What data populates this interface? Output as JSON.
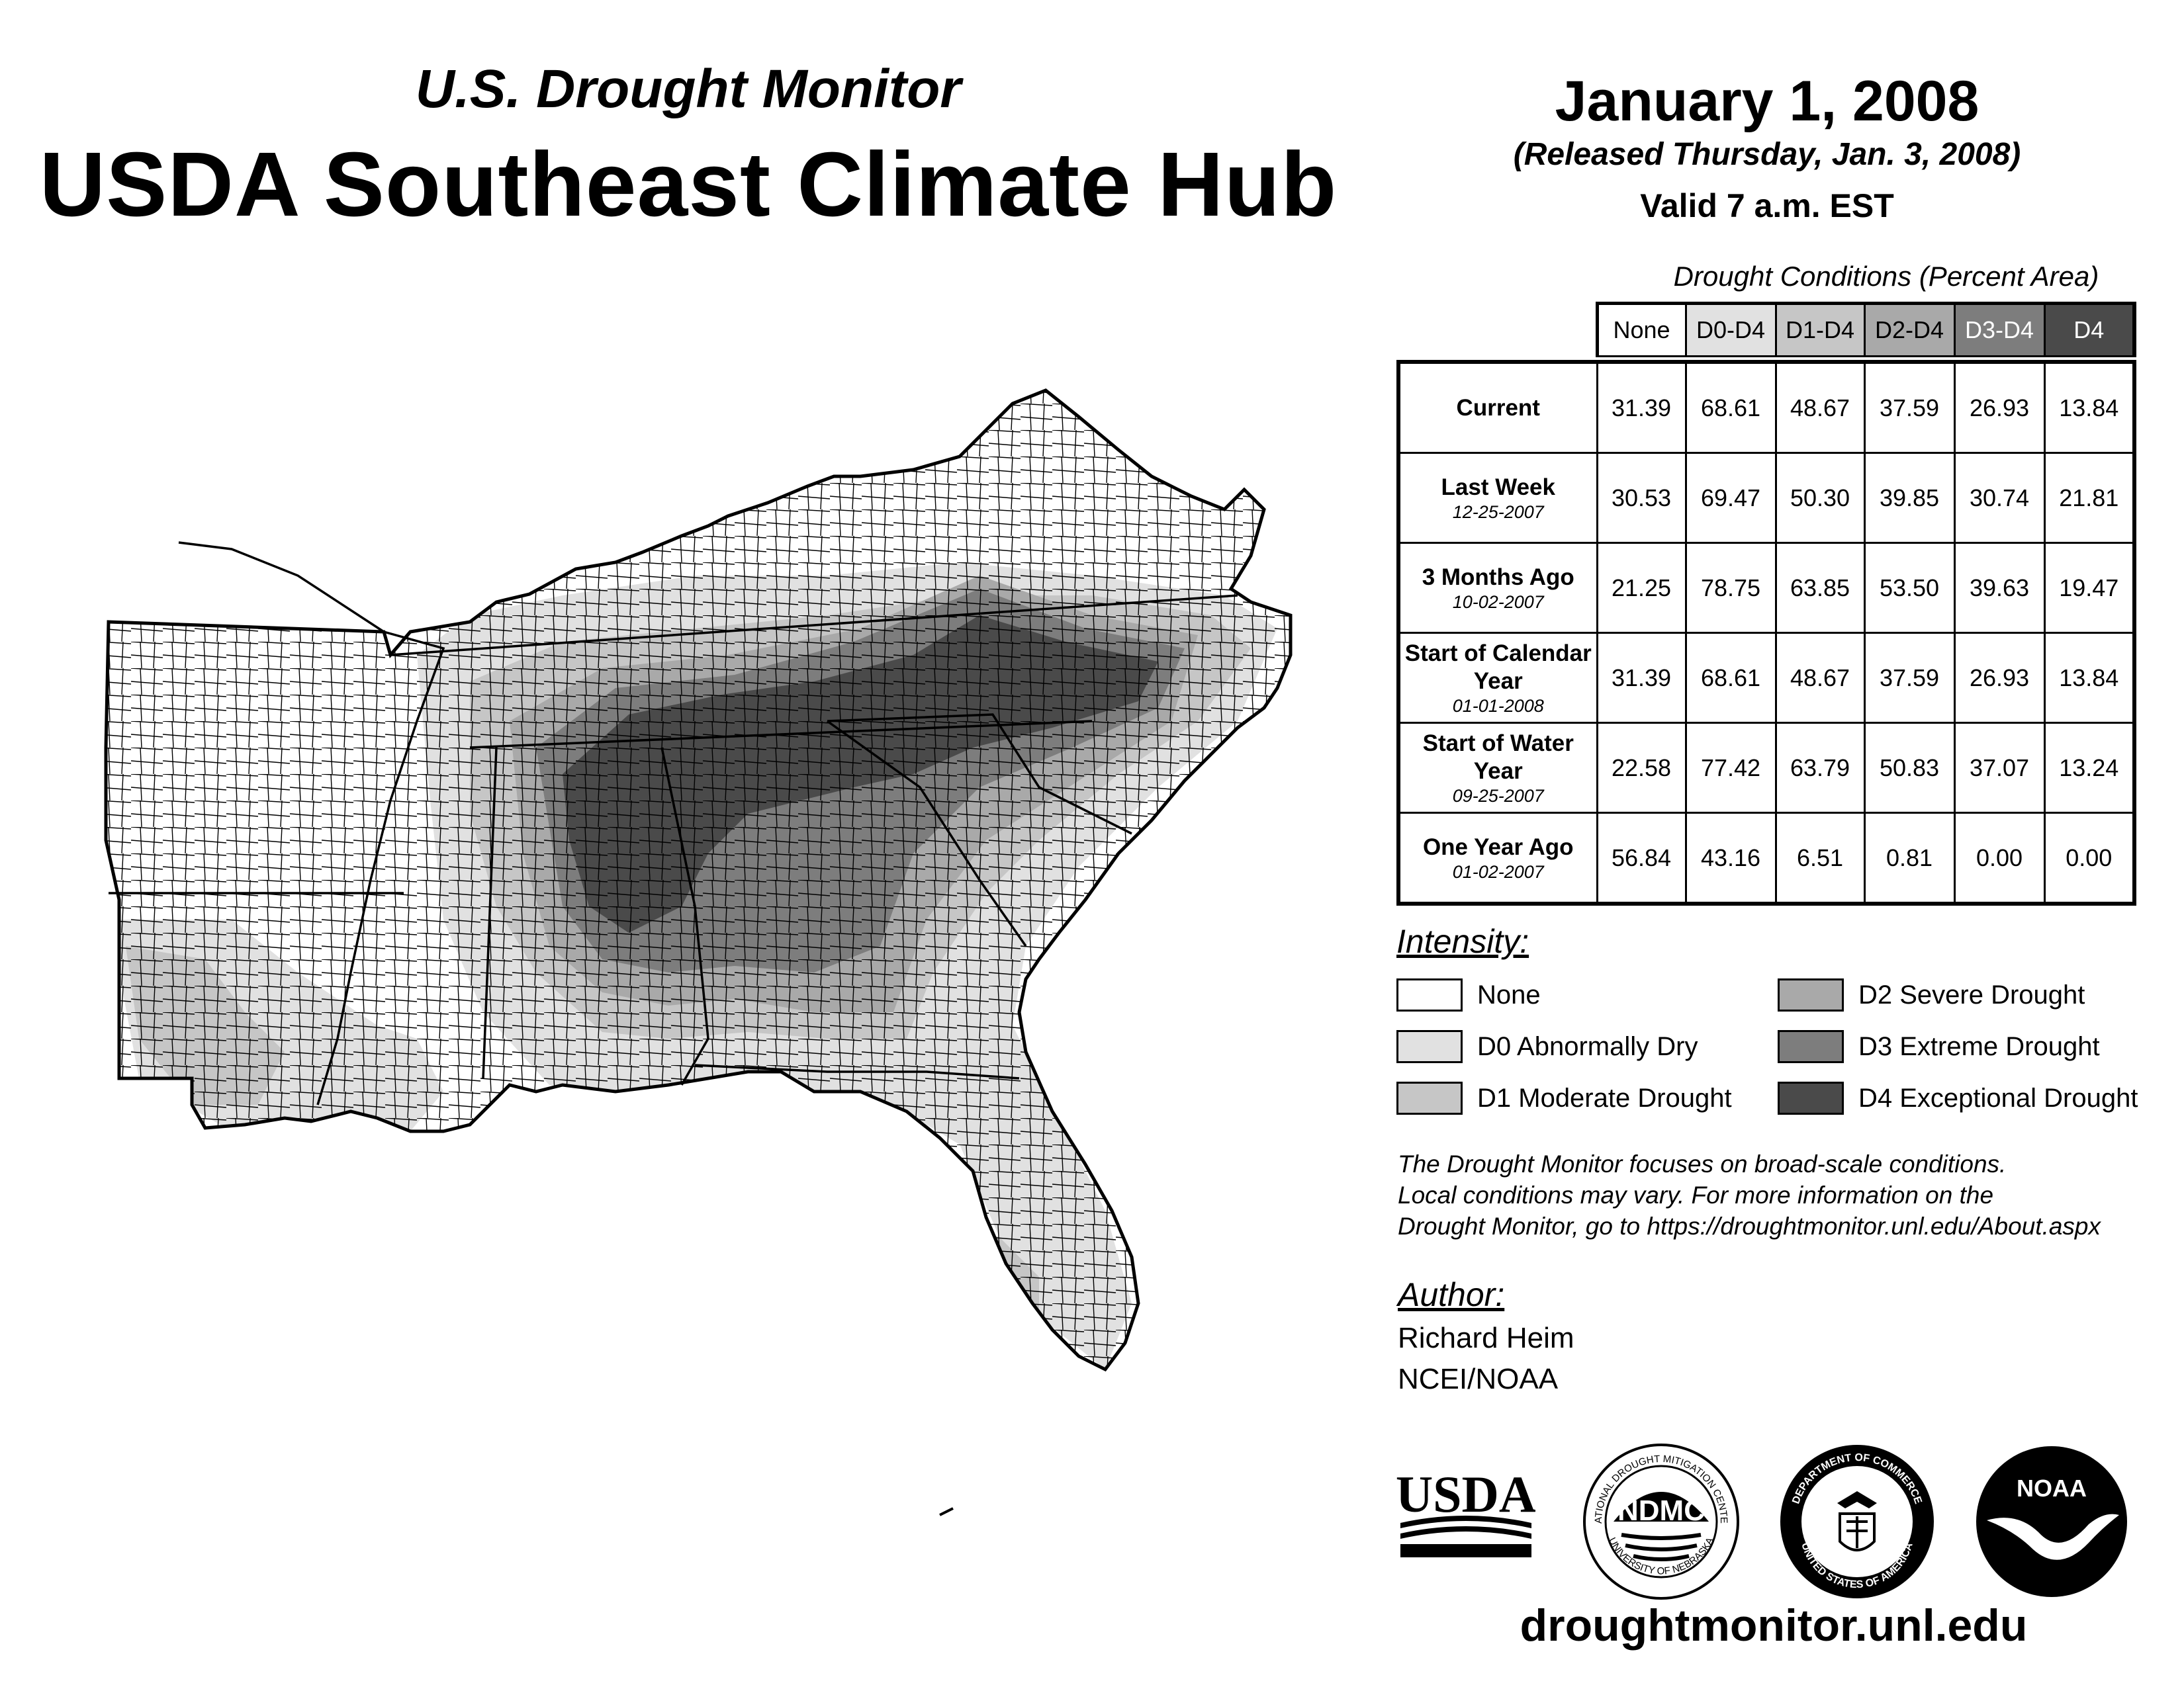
{
  "header": {
    "subtitle": "U.S. Drought Monitor",
    "title": "USDA Southeast Climate Hub"
  },
  "release": {
    "date": "January 1, 2008",
    "released": "(Released Thursday, Jan. 3, 2008)",
    "valid": "Valid 7 a.m. EST"
  },
  "table": {
    "caption": "Drought Conditions (Percent Area)",
    "columns": [
      "None",
      "D0-D4",
      "D1-D4",
      "D2-D4",
      "D3-D4",
      "D4"
    ],
    "rows": [
      {
        "label": "Current",
        "sublabel": "",
        "values": [
          "31.39",
          "68.61",
          "48.67",
          "37.59",
          "26.93",
          "13.84"
        ]
      },
      {
        "label": "Last Week",
        "sublabel": "12-25-2007",
        "values": [
          "30.53",
          "69.47",
          "50.30",
          "39.85",
          "30.74",
          "21.81"
        ]
      },
      {
        "label": "3 Months Ago",
        "sublabel": "10-02-2007",
        "values": [
          "21.25",
          "78.75",
          "63.85",
          "53.50",
          "39.63",
          "19.47"
        ]
      },
      {
        "label": "Start of Calendar Year",
        "sublabel": "01-01-2008",
        "values": [
          "31.39",
          "68.61",
          "48.67",
          "37.59",
          "26.93",
          "13.84"
        ]
      },
      {
        "label": "Start of Water Year",
        "sublabel": "09-25-2007",
        "values": [
          "22.58",
          "77.42",
          "63.79",
          "50.83",
          "37.07",
          "13.24"
        ]
      },
      {
        "label": "One Year Ago",
        "sublabel": "01-02-2007",
        "values": [
          "56.84",
          "43.16",
          "6.51",
          "0.81",
          "0.00",
          "0.00"
        ]
      }
    ]
  },
  "legend": {
    "label": "Intensity:",
    "items": [
      {
        "label": "None",
        "color": "#ffffff"
      },
      {
        "label": "D0 Abnormally Dry",
        "color": "#e1e1e1"
      },
      {
        "label": "D1 Moderate Drought",
        "color": "#c6c6c6"
      },
      {
        "label": "D2 Severe Drought",
        "color": "#a9a9a9"
      },
      {
        "label": "D3 Extreme Drought",
        "color": "#7d7d7d"
      },
      {
        "label": "D4 Exceptional Drought",
        "color": "#4a4a4a"
      }
    ]
  },
  "note": {
    "line1": "The Drought Monitor focuses on broad-scale conditions.",
    "line2": "Local conditions may vary. For more information on the",
    "line3": "Drought Monitor, go to https://droughtmonitor.unl.edu/About.aspx"
  },
  "author": {
    "label": "Author:",
    "name": "Richard Heim",
    "org": "NCEI/NOAA"
  },
  "logos": {
    "usda": "USDA",
    "ndmc": "NDMC",
    "ndmc_ring_top": "NATIONAL DROUGHT MITIGATION CENTER",
    "ndmc_ring_bottom": "UNIVERSITY OF NEBRASKA",
    "doc_ring_top": "DEPARTMENT OF COMMERCE",
    "doc_ring_bottom": "UNITED STATES OF AMERICA",
    "noaa": "NOAA"
  },
  "url": "droughtmonitor.unl.edu"
}
